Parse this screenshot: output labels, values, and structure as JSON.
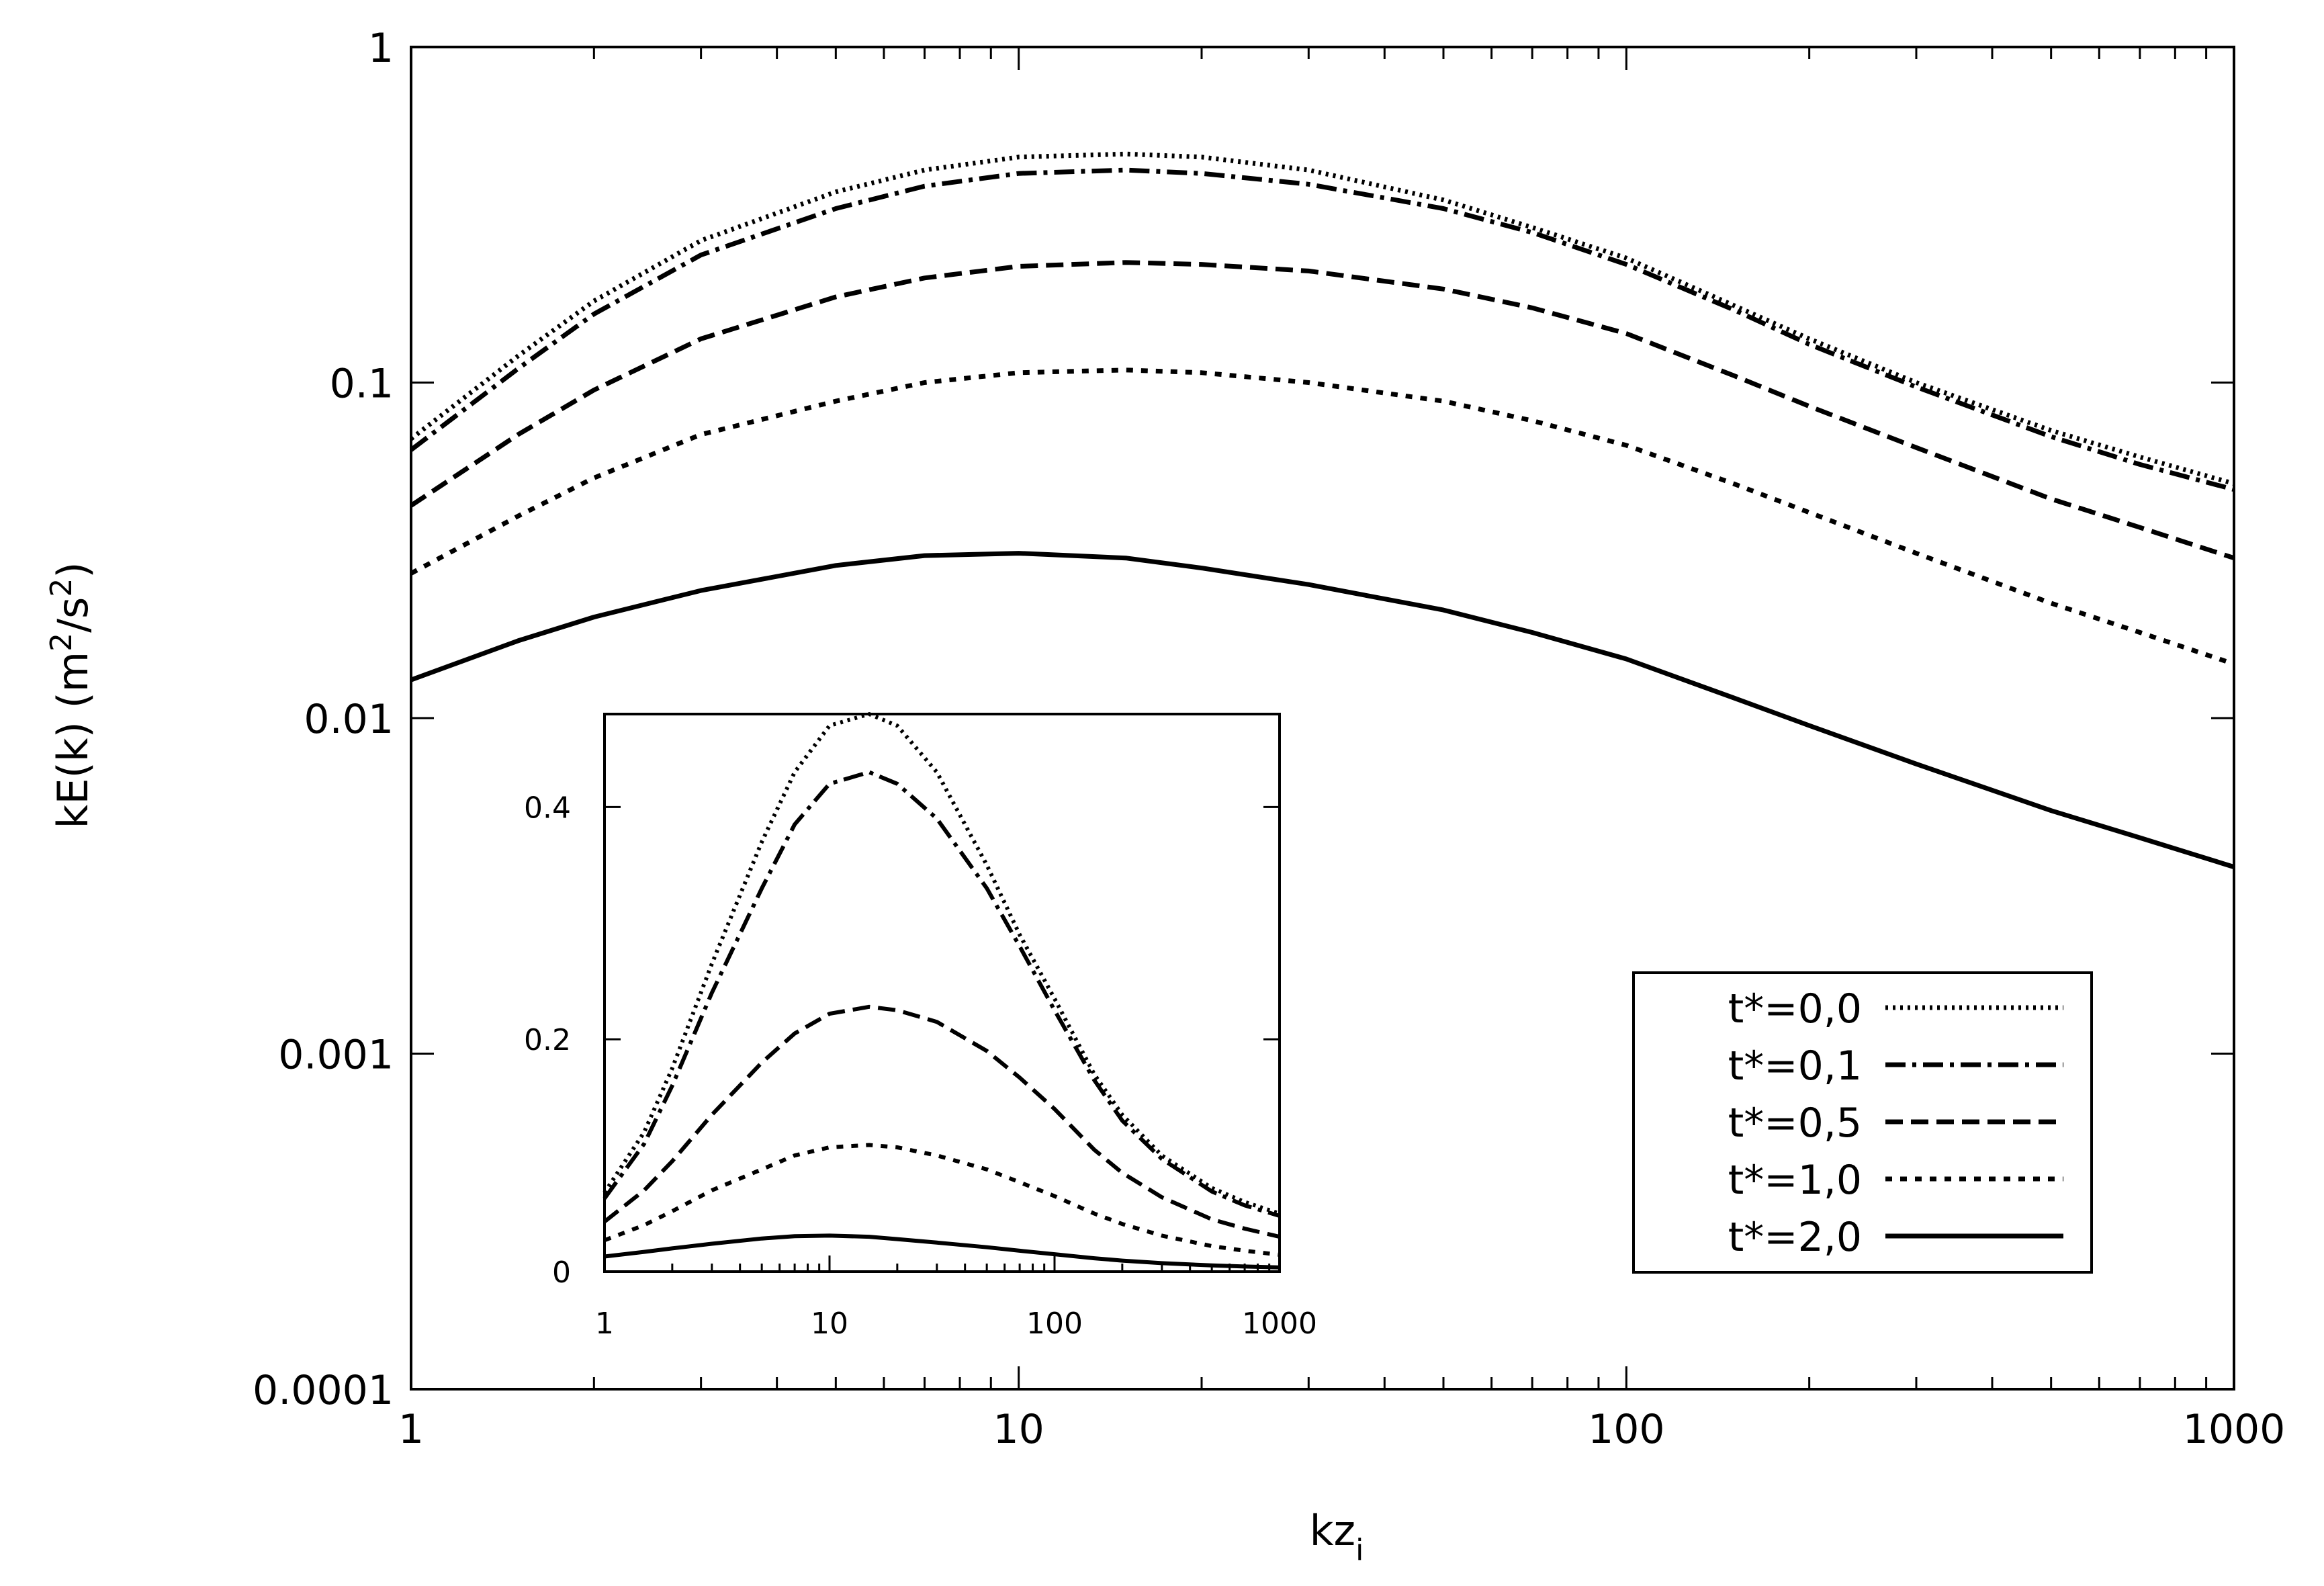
{
  "chart_data": [
    {
      "id": "main",
      "type": "line",
      "xscale": "log",
      "yscale": "log",
      "xlabel": "kz",
      "xlabel_sub": "i",
      "ylabel_parts": [
        "kE(k) (m",
        "2",
        "/s",
        "2",
        ")"
      ],
      "xlim": [
        1,
        1000
      ],
      "ylim": [
        0.0001,
        1
      ],
      "xticks": [
        1,
        10,
        100,
        1000
      ],
      "xtick_labels": [
        "1",
        "10",
        "100",
        "1000"
      ],
      "yticks": [
        0.0001,
        0.001,
        0.01,
        0.1,
        1
      ],
      "ytick_labels": [
        "0.0001",
        "0.001",
        "0.01",
        "0.1",
        "1"
      ],
      "legend": {
        "position": "lower-right",
        "entries": [
          "t*=0,0",
          "t*=0,1",
          "t*=0,5",
          "t*=1,0",
          "t*=2,0"
        ]
      },
      "x": [
        1,
        1.5,
        2,
        3,
        5,
        7,
        10,
        15,
        20,
        30,
        50,
        70,
        100,
        150,
        200,
        300,
        500,
        700,
        1000
      ],
      "series": [
        {
          "name": "t*=0,0",
          "style": "dotted",
          "values": [
            0.068,
            0.12,
            0.175,
            0.265,
            0.37,
            0.43,
            0.47,
            0.48,
            0.47,
            0.43,
            0.35,
            0.29,
            0.235,
            0.17,
            0.135,
            0.1,
            0.072,
            0.06,
            0.05
          ]
        },
        {
          "name": "t*=0,1",
          "style": "dashdot",
          "values": [
            0.063,
            0.11,
            0.16,
            0.24,
            0.33,
            0.385,
            0.42,
            0.43,
            0.42,
            0.39,
            0.33,
            0.28,
            0.225,
            0.165,
            0.13,
            0.097,
            0.069,
            0.057,
            0.048
          ]
        },
        {
          "name": "t*=0,5",
          "style": "dashed",
          "values": [
            0.043,
            0.07,
            0.095,
            0.135,
            0.18,
            0.205,
            0.222,
            0.228,
            0.225,
            0.215,
            0.19,
            0.167,
            0.14,
            0.105,
            0.085,
            0.064,
            0.045,
            0.037,
            0.03
          ]
        },
        {
          "name": "t*=1,0",
          "style": "shortdash",
          "values": [
            0.027,
            0.04,
            0.052,
            0.07,
            0.088,
            0.1,
            0.107,
            0.109,
            0.107,
            0.1,
            0.088,
            0.077,
            0.065,
            0.05,
            0.041,
            0.031,
            0.022,
            0.018,
            0.0145
          ]
        },
        {
          "name": "t*=2,0",
          "style": "solid",
          "values": [
            0.013,
            0.017,
            0.02,
            0.024,
            0.0285,
            0.0305,
            0.031,
            0.03,
            0.028,
            0.025,
            0.021,
            0.018,
            0.015,
            0.0115,
            0.0095,
            0.0073,
            0.0053,
            0.0044,
            0.0036
          ]
        }
      ]
    },
    {
      "id": "inset",
      "type": "line",
      "xscale": "log",
      "yscale": "linear",
      "xlim": [
        1,
        1000
      ],
      "ylim": [
        0,
        0.48
      ],
      "xticks": [
        1,
        10,
        100,
        1000
      ],
      "xtick_labels": [
        "1",
        "10",
        "100",
        "1000"
      ],
      "yticks": [
        0,
        0.2,
        0.4
      ],
      "ytick_labels": [
        "0",
        "0.2",
        "0.4"
      ],
      "note": "same five series as the main chart plotted on a linear y axis"
    }
  ]
}
